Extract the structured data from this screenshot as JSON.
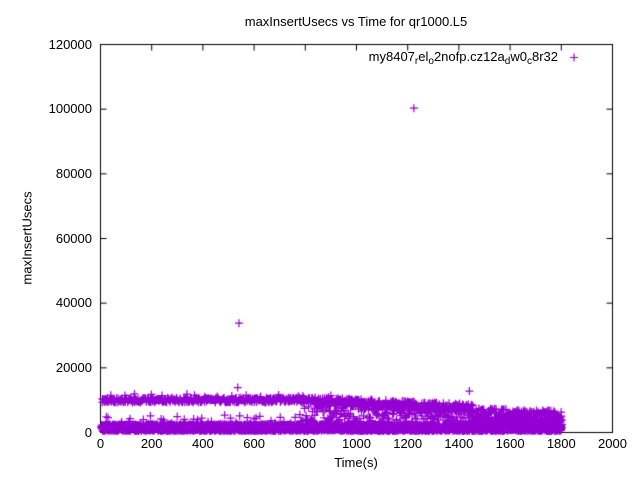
{
  "chart_data": {
    "type": "scatter",
    "title": "maxInsertUsecs vs Time for qr1000.L5",
    "xlabel": "Time(s)",
    "ylabel": "maxInsertUsecs",
    "xlim": [
      0,
      2000
    ],
    "ylim": [
      0,
      120000
    ],
    "xticks": [
      0,
      200,
      400,
      600,
      800,
      1000,
      1200,
      1400,
      1600,
      1800,
      2000
    ],
    "yticks": [
      0,
      20000,
      40000,
      60000,
      80000,
      100000,
      120000
    ],
    "grid": false,
    "legend_position": "top-right-inside",
    "background": "#ffffff",
    "axis_color": "#000000",
    "series": [
      {
        "name": "my8407_rel_o2nofp.cz12a_dw0_c8r32",
        "name_segments": [
          {
            "t": "my8407"
          },
          {
            "t": "r",
            "sub": true
          },
          {
            "t": "el"
          },
          {
            "t": "o",
            "sub": true
          },
          {
            "t": "2nofp.cz12a"
          },
          {
            "t": "d",
            "sub": true
          },
          {
            "t": "w0"
          },
          {
            "t": "c",
            "sub": true
          },
          {
            "t": "8r32"
          }
        ],
        "marker": "plus",
        "color": "#9400D3",
        "time_range_s": [
          3,
          1805
        ],
        "outliers": [
          [
            536,
            13900
          ],
          [
            541,
            33800
          ],
          [
            1224,
            100300
          ],
          [
            1441,
            12800
          ]
        ],
        "bands": [
          {
            "label": "floor-dense-0.5-2.5k",
            "t0": 3,
            "t1": 1802,
            "dt": 1,
            "per": 2,
            "v0min": 450,
            "v0max": 2550,
            "v1min": 450,
            "v1max": 2550
          },
          {
            "label": "floor-spikes",
            "t0": 15,
            "t1": 1795,
            "dt": 28,
            "per": 1,
            "v0min": 2600,
            "v0max": 5400,
            "v1min": 2600,
            "v1max": 5400
          },
          {
            "label": "upper-steady-10k",
            "t0": 6,
            "t1": 835,
            "dt": 2.2,
            "per": 1,
            "v0min": 9300,
            "v0max": 10700,
            "v1min": 9300,
            "v1max": 10800
          },
          {
            "label": "upper-sprinkle-11-12k",
            "t0": 40,
            "t1": 950,
            "dt": 55,
            "per": 1,
            "v0min": 10800,
            "v0max": 12100,
            "v1min": 10800,
            "v1max": 12100
          },
          {
            "label": "mid-sparse",
            "t0": 120,
            "t1": 780,
            "dt": 75,
            "per": 1,
            "v0min": 2900,
            "v0max": 5200,
            "v1min": 2900,
            "v1max": 5200
          },
          {
            "label": "upper-decline",
            "t0": 835,
            "t1": 1455,
            "dt": 1.9,
            "per": 1,
            "v0min": 8600,
            "v0max": 11000,
            "v1min": 6300,
            "v1max": 8800
          },
          {
            "label": "scatter-fill",
            "t0": 780,
            "t1": 1455,
            "dt": 3.2,
            "per": 1,
            "v0min": 3100,
            "v0max": 9200,
            "v1min": 3000,
            "v1max": 7600
          },
          {
            "label": "tail-4-7k",
            "t0": 1455,
            "t1": 1803,
            "dt": 1.6,
            "per": 1,
            "v0min": 3400,
            "v0max": 7700,
            "v1min": 3100,
            "v1max": 6700
          },
          {
            "label": "tail-low-merge",
            "t0": 1455,
            "t1": 1803,
            "dt": 3.2,
            "per": 1,
            "v0min": 2400,
            "v0max": 4300,
            "v1min": 2400,
            "v1max": 4300
          }
        ]
      }
    ]
  }
}
